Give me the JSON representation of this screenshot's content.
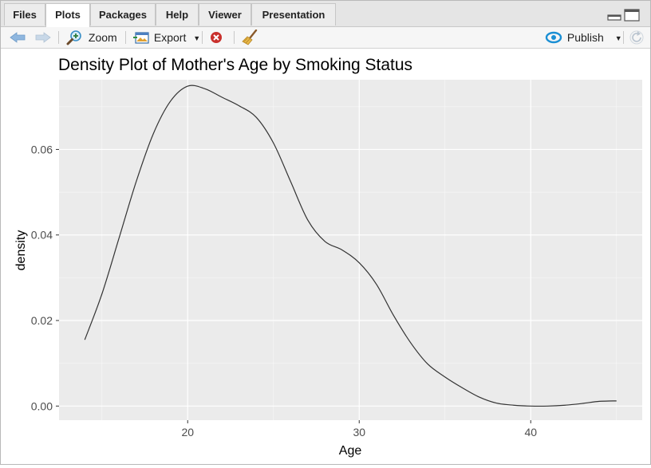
{
  "tabs": [
    {
      "label": "Files"
    },
    {
      "label": "Plots"
    },
    {
      "label": "Packages"
    },
    {
      "label": "Help"
    },
    {
      "label": "Viewer"
    },
    {
      "label": "Presentation"
    }
  ],
  "active_tab": "Plots",
  "toolbar": {
    "zoom_label": "Zoom",
    "export_label": "Export",
    "publish_label": "Publish"
  },
  "colors": {
    "panel_bg": "#ebebeb",
    "grid": "#ffffff",
    "line": "#333333",
    "accent_blue": "#1a8fd4"
  },
  "chart_data": {
    "type": "line",
    "title": "Density Plot of Mother's Age by Smoking Status",
    "xlabel": "Age",
    "ylabel": "density",
    "xlim": [
      12.5,
      46.5
    ],
    "ylim": [
      -0.0033,
      0.0763
    ],
    "x_ticks": [
      20,
      30,
      40
    ],
    "y_ticks": [
      0.0,
      0.02,
      0.04,
      0.06
    ],
    "x_tick_labels": [
      "20",
      "30",
      "40"
    ],
    "y_tick_labels": [
      "0.00",
      "0.02",
      "0.04",
      "0.06"
    ],
    "grid": true,
    "series": [
      {
        "x": [
          14,
          15,
          16,
          17,
          18,
          19,
          20,
          21,
          22,
          23,
          24,
          25,
          26,
          27,
          28,
          29,
          30,
          31,
          32,
          33,
          34,
          35,
          36,
          37,
          38,
          39,
          40,
          41,
          42,
          43,
          44,
          45
        ],
        "values": [
          0.0155,
          0.0262,
          0.0393,
          0.0525,
          0.0637,
          0.0713,
          0.0748,
          0.0742,
          0.0722,
          0.0702,
          0.0675,
          0.0615,
          0.0525,
          0.0435,
          0.0385,
          0.0365,
          0.0335,
          0.0285,
          0.0212,
          0.0148,
          0.0098,
          0.0068,
          0.0043,
          0.0021,
          0.0007,
          0.0002,
          0.0,
          0.0,
          0.0002,
          0.0006,
          0.0011,
          0.0012
        ]
      }
    ]
  }
}
